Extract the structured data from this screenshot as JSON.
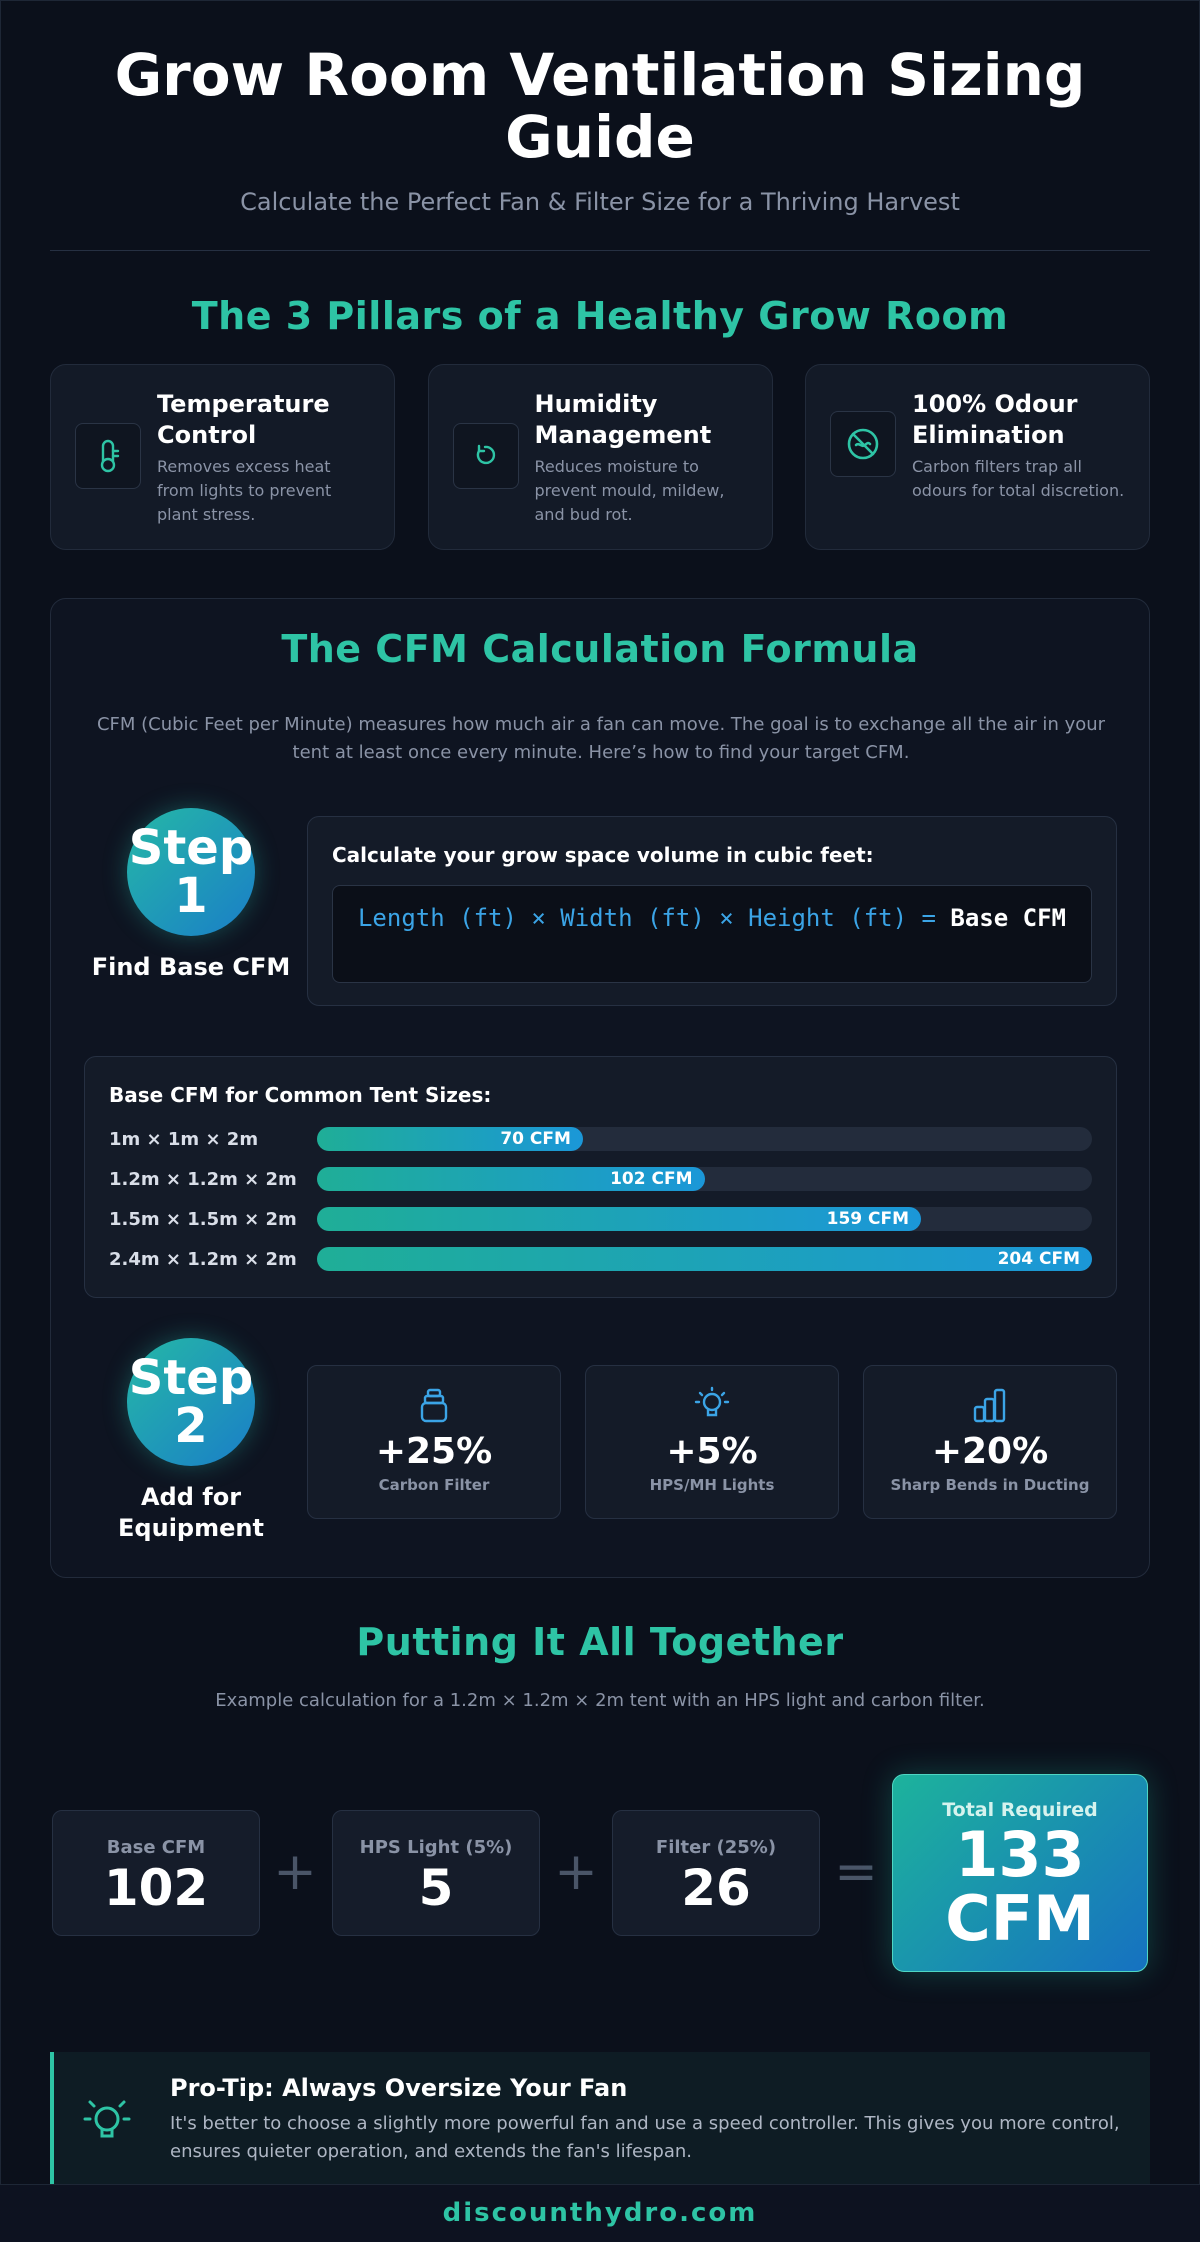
{
  "header": {
    "title": "Grow Room Ventilation Sizing Guide",
    "subtitle": "Calculate the Perfect Fan & Filter Size for a Thriving Harvest"
  },
  "pillars": {
    "title": "The 3 Pillars of a Healthy Grow Room",
    "items": [
      {
        "icon": "thermometer-icon",
        "title": "Temperature Control",
        "desc": "Removes excess heat from lights to prevent plant stress."
      },
      {
        "icon": "droplet-icon",
        "title": "Humidity Management",
        "desc": "Reduces moisture to prevent mould, mildew, and bud rot."
      },
      {
        "icon": "no-odour-icon",
        "title": "100% Odour Elimination",
        "desc": "Carbon filters trap all odours for total discretion."
      }
    ]
  },
  "formula": {
    "title": "The CFM Calculation Formula",
    "intro": "CFM (Cubic Feet per Minute) measures how much air a fan can move. The goal is to exchange all the air in your tent at least once every minute. Here’s how to find your target CFM.",
    "step1": {
      "word": "Step",
      "number": "1",
      "label": "Find Base CFM"
    },
    "calc_heading": "Calculate your grow space volume in cubic feet:",
    "formula_expr": "Length (ft) × Width (ft) × Height (ft) =",
    "formula_result": "Base CFM",
    "tents_heading": "Base CFM for Common Tent Sizes:",
    "tents": [
      {
        "label": "1m × 1m × 2m",
        "value": 70,
        "text": "70 CFM"
      },
      {
        "label": "1.2m × 1.2m × 2m",
        "value": 102,
        "text": "102 CFM"
      },
      {
        "label": "1.5m × 1.5m × 2m",
        "value": 159,
        "text": "159 CFM"
      },
      {
        "label": "2.4m × 1.2m × 2m",
        "value": 204,
        "text": "204 CFM"
      }
    ],
    "tents_max": 204,
    "step2": {
      "word": "Step",
      "number": "2",
      "label": "Add for Equipment"
    },
    "equipment": [
      {
        "icon": "carbon-filter-icon",
        "value": "+25%",
        "label": "Carbon Filter"
      },
      {
        "icon": "lightbulb-icon",
        "value": "+5%",
        "label": "HPS/MH Lights"
      },
      {
        "icon": "ducting-icon",
        "value": "+20%",
        "label": "Sharp Bends in Ducting"
      }
    ]
  },
  "together": {
    "title": "Putting It All Together",
    "intro": "Example calculation for a 1.2m × 1.2m × 2m tent with an HPS light and carbon filter.",
    "base": {
      "label": "Base CFM",
      "value": "102"
    },
    "light": {
      "label": "HPS Light (5%)",
      "value": "5"
    },
    "filter": {
      "label": "Filter (25%)",
      "value": "26"
    },
    "plus": "+",
    "equals": "=",
    "total": {
      "label": "Total Required",
      "value": "133",
      "unit": "CFM"
    }
  },
  "protip": {
    "title": "Pro-Tip: Always Oversize Your Fan",
    "text": "It's better to choose a slightly more powerful fan and use a speed controller. This gives you more control, ensures quieter operation, and extends the fan's lifespan."
  },
  "footer": {
    "site": "discounthydro.com"
  },
  "colors": {
    "accent": "#2ec4a5",
    "blue": "#1b97d8",
    "background": "#0b101b"
  }
}
